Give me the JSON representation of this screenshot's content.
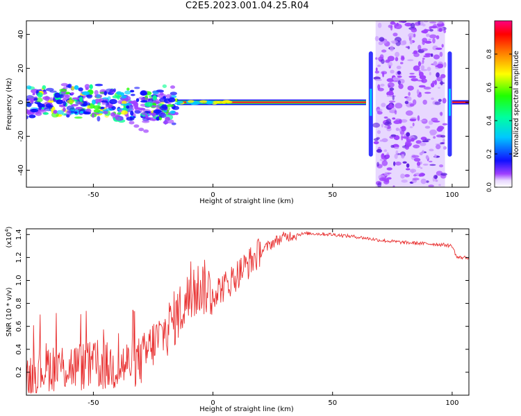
{
  "title": "C2E5.2023.001.04.25.R04",
  "colors": {
    "snr_line": "#e83030",
    "axes": "#000000"
  },
  "chart_data": [
    {
      "type": "heatmap",
      "xlabel": "Height of straight line (km)",
      "ylabel": "Frequency (Hz)",
      "xlim": [
        -78,
        107
      ],
      "ylim": [
        -50,
        48
      ],
      "xticks": [
        -50,
        0,
        50,
        100
      ],
      "yticks": [
        -40,
        -20,
        0,
        20,
        40
      ],
      "colorbar": {
        "label": "Normalized spectral amplitude",
        "range": [
          0.0,
          1.0
        ],
        "ticks": [
          "0.0",
          "0.2",
          "0.4",
          "0.6",
          "0.8"
        ],
        "colormap": "rainbow"
      },
      "features": {
        "carrier_frequency_hz": 0,
        "noisy_band_km": [
          -78,
          -15
        ],
        "clean_band_km": [
          -15,
          64
        ],
        "occultation_gap_km": [
          68,
          97
        ],
        "edge_spikes_km": [
          66,
          99
        ]
      }
    },
    {
      "type": "line",
      "xlabel": "Height of straight line (km)",
      "ylabel": "SNR (10 * v/v)",
      "yscale_label": "(x10",
      "yscale_exp": "4",
      "xlim": [
        -78,
        107
      ],
      "ylim": [
        0,
        1.45
      ],
      "xticks": [
        -50,
        0,
        50,
        100
      ],
      "yticks": [
        "0.2",
        "0.4",
        "0.6",
        "0.8",
        "1.0",
        "1.2",
        "1.4"
      ],
      "series": [
        {
          "x": [
            -78,
            -70,
            -60,
            -50,
            -40,
            -30,
            -25,
            -20,
            -15,
            -10,
            -5,
            0,
            5,
            10,
            15,
            20,
            25,
            30,
            35,
            40,
            50,
            60,
            70,
            80,
            90,
            97,
            100,
            102,
            105,
            107
          ],
          "y": [
            0.15,
            0.25,
            0.25,
            0.25,
            0.25,
            0.3,
            0.45,
            0.55,
            0.7,
            0.85,
            0.95,
            0.9,
            0.95,
            1.05,
            1.15,
            1.25,
            1.33,
            1.38,
            1.4,
            1.41,
            1.4,
            1.38,
            1.35,
            1.33,
            1.32,
            1.31,
            1.3,
            1.2,
            1.2,
            1.2
          ]
        }
      ]
    }
  ]
}
